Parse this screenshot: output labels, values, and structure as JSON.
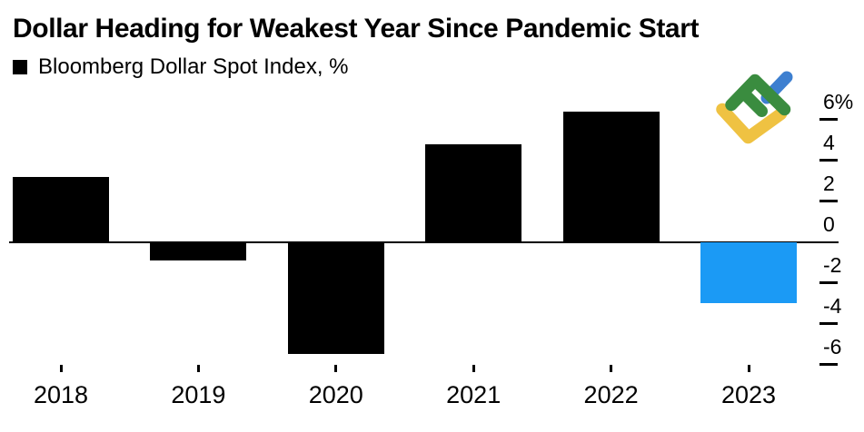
{
  "title": "Dollar Heading for Weakest Year Since Pandemic Start",
  "legend": {
    "label": "Bloomberg Dollar Spot Index, %"
  },
  "colors": {
    "background": "#FFFFFF",
    "text": "#000000",
    "axis": "#000000",
    "bar_default": "#000000",
    "bar_highlight": "#1B9AF5"
  },
  "logo": {
    "label": "LiteFinance logo",
    "colors": {
      "green": "#3A8C3F",
      "yellow": "#EFC242",
      "blue": "#3D7FD0"
    }
  },
  "chart_data": {
    "type": "bar",
    "title": "Dollar Heading for Weakest Year Since Pandemic Start",
    "categories": [
      "2018",
      "2019",
      "2020",
      "2021",
      "2022",
      "2023"
    ],
    "series": [
      {
        "name": "Bloomberg Dollar Spot Index, %",
        "values": [
          3.2,
          -0.9,
          -5.5,
          4.8,
          6.4,
          -3.0
        ]
      }
    ],
    "highlight_category": "2023",
    "unit": "%",
    "ylim": [
      -7,
      7
    ],
    "yticks": [
      6,
      4,
      2,
      0,
      -2,
      -4,
      -6
    ],
    "ytick_labels": [
      "6%",
      "4",
      "2",
      "0",
      "-2",
      "-4",
      "-6"
    ],
    "legend_position": "top-left",
    "axis_side": "right",
    "grid": false
  }
}
